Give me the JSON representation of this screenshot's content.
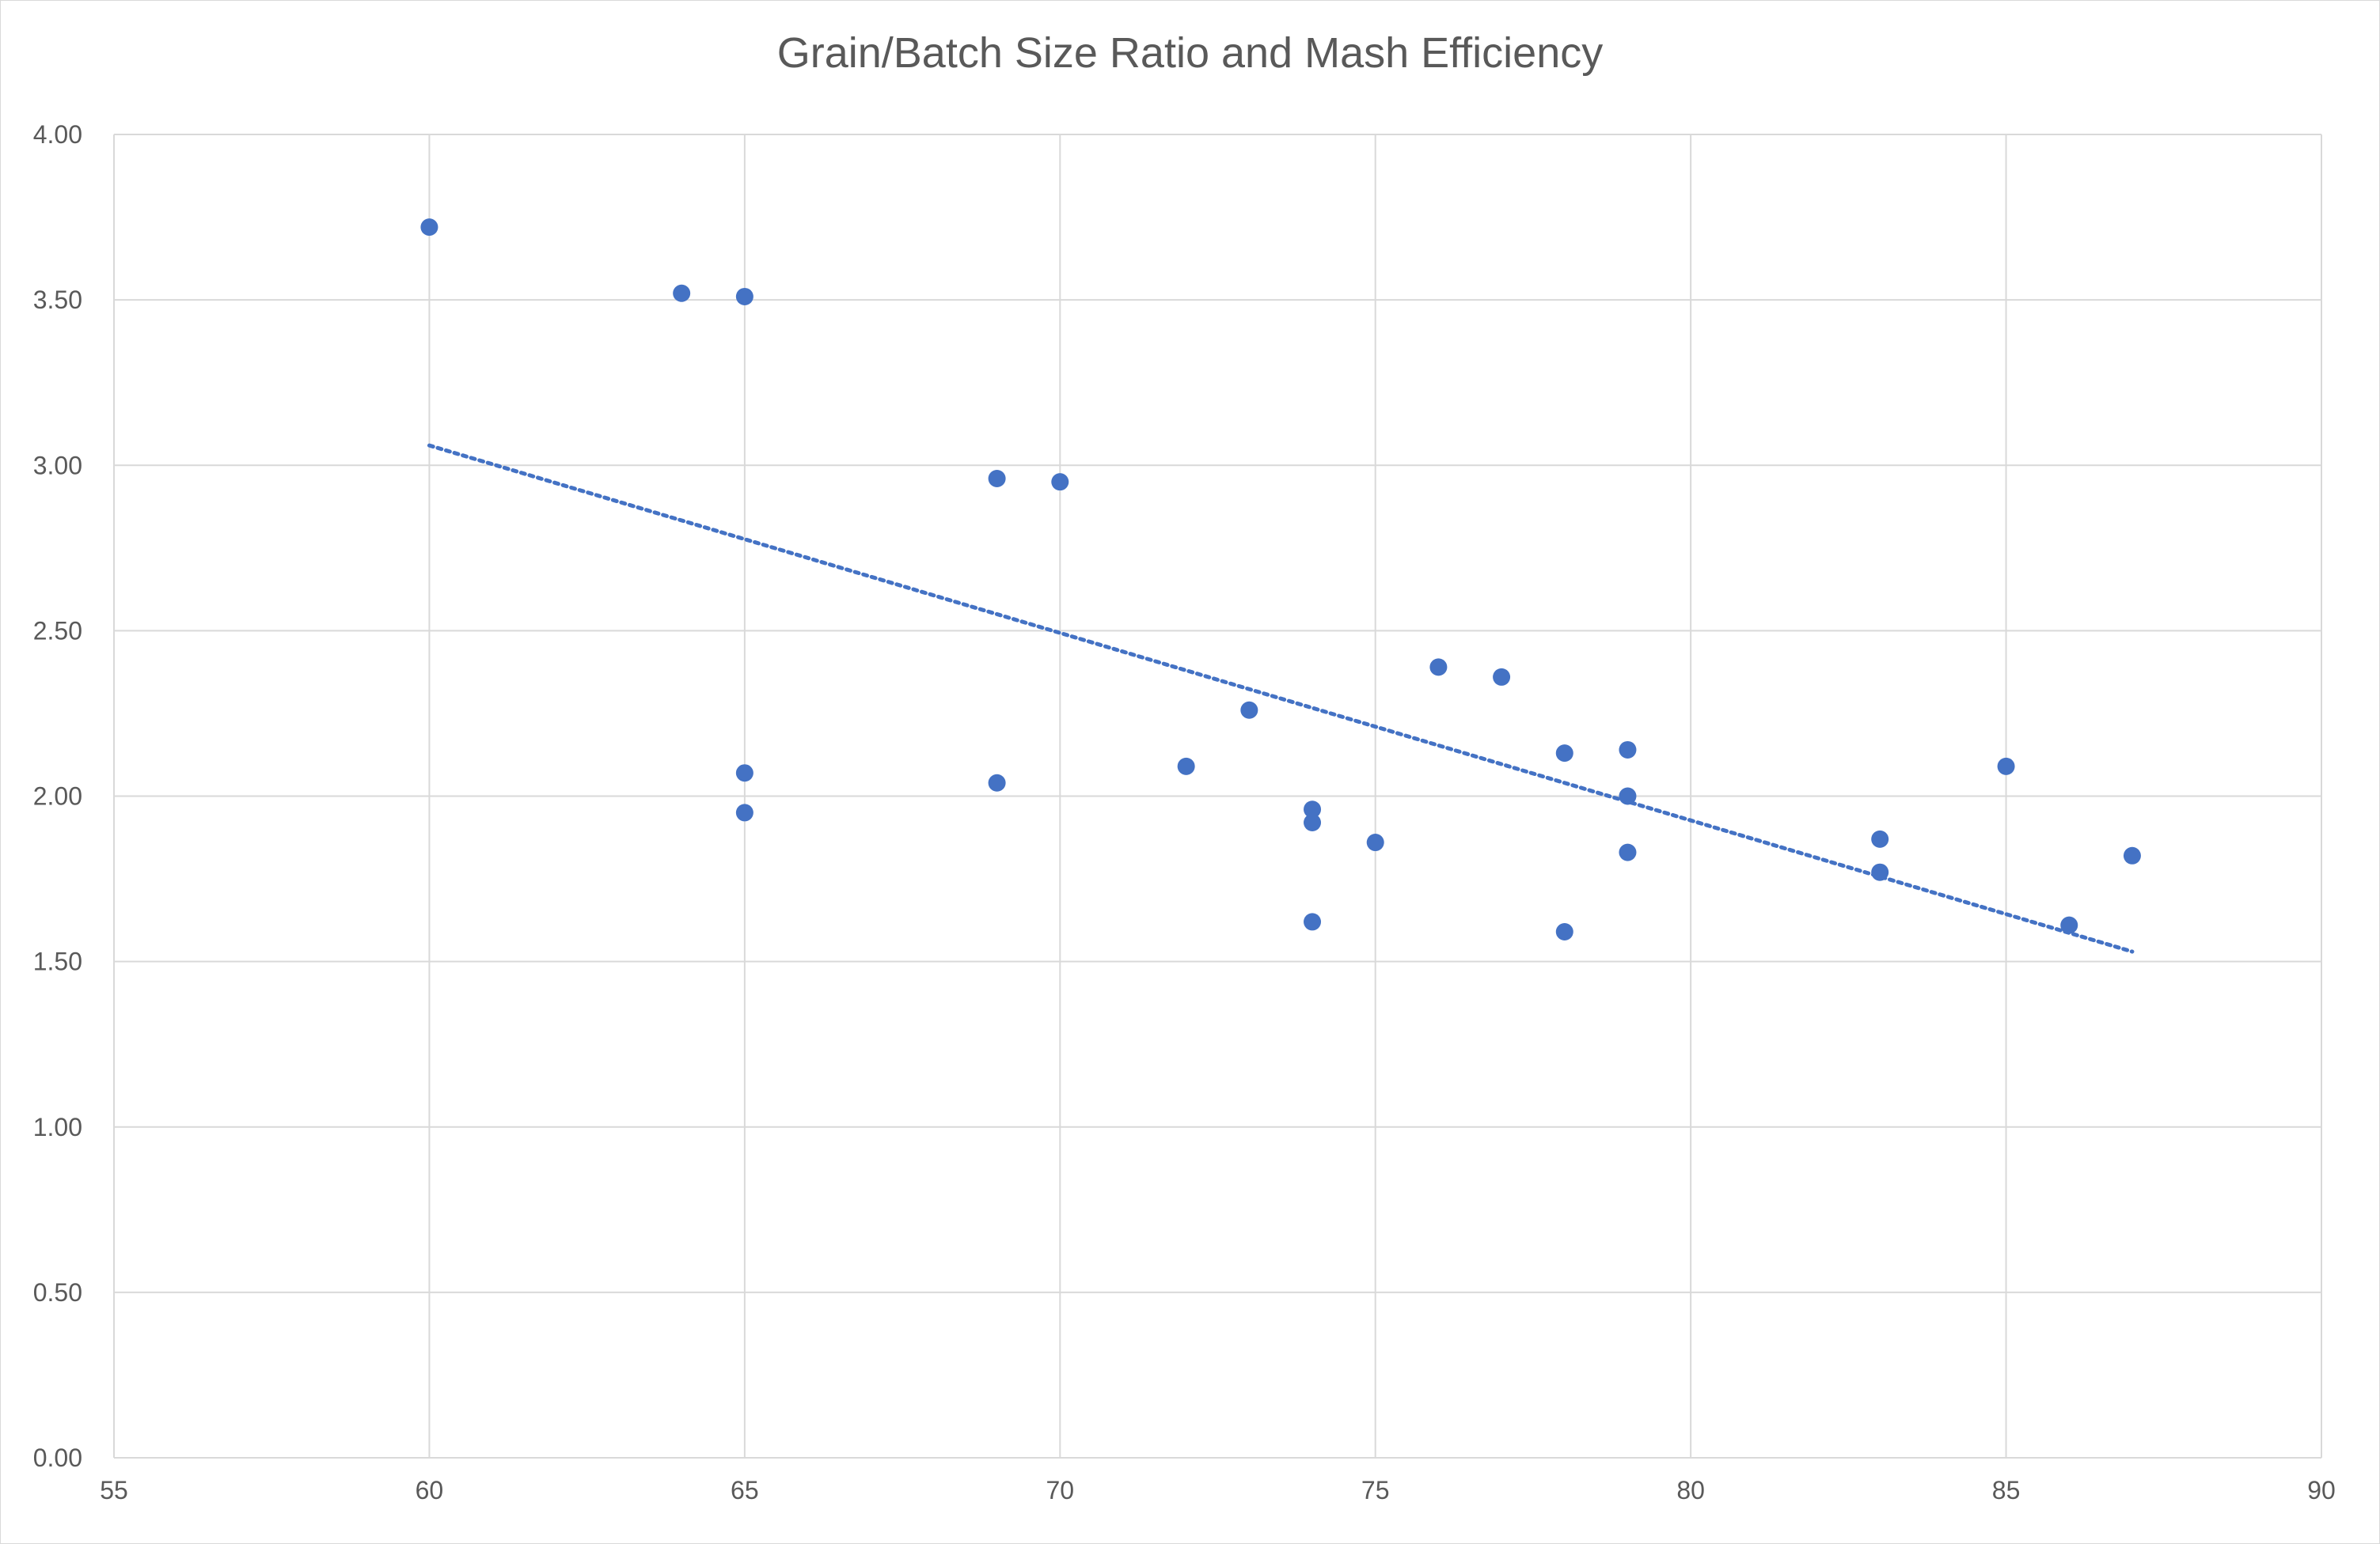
{
  "chart_data": {
    "type": "scatter",
    "title": "Grain/Batch Size Ratio and Mash Efficiency",
    "xlabel": "",
    "ylabel": "",
    "xlim": [
      55,
      90
    ],
    "ylim": [
      0,
      4
    ],
    "x_ticks": [
      "55",
      "60",
      "65",
      "70",
      "75",
      "80",
      "85",
      "90"
    ],
    "y_ticks": [
      "0.00",
      "0.50",
      "1.00",
      "1.50",
      "2.00",
      "2.50",
      "3.00",
      "3.50",
      "4.00"
    ],
    "grid": true,
    "legend": "none",
    "colors": {
      "marker": "#4472C4",
      "trendline": "#4472C4",
      "grid": "#d9d9d9",
      "text": "#595959"
    },
    "series": [
      {
        "points": [
          [
            60,
            3.72
          ],
          [
            64,
            3.52
          ],
          [
            65,
            3.51
          ],
          [
            69,
            2.96
          ],
          [
            70,
            2.95
          ],
          [
            65,
            2.07
          ],
          [
            65,
            1.95
          ],
          [
            69,
            2.04
          ],
          [
            72,
            2.09
          ],
          [
            73,
            2.26
          ],
          [
            74,
            1.96
          ],
          [
            74,
            1.92
          ],
          [
            74,
            1.62
          ],
          [
            75,
            1.86
          ],
          [
            76,
            2.39
          ],
          [
            77,
            2.36
          ],
          [
            78,
            2.13
          ],
          [
            78,
            1.59
          ],
          [
            79,
            2.14
          ],
          [
            79,
            2.0
          ],
          [
            79,
            1.83
          ],
          [
            83,
            1.87
          ],
          [
            83,
            1.77
          ],
          [
            85,
            2.09
          ],
          [
            86,
            1.61
          ],
          [
            87,
            1.82
          ]
        ]
      }
    ],
    "trendline": {
      "style": "dotted",
      "type": "linear",
      "x_range": [
        60,
        87
      ],
      "y_values": [
        3.06,
        1.53
      ]
    }
  }
}
